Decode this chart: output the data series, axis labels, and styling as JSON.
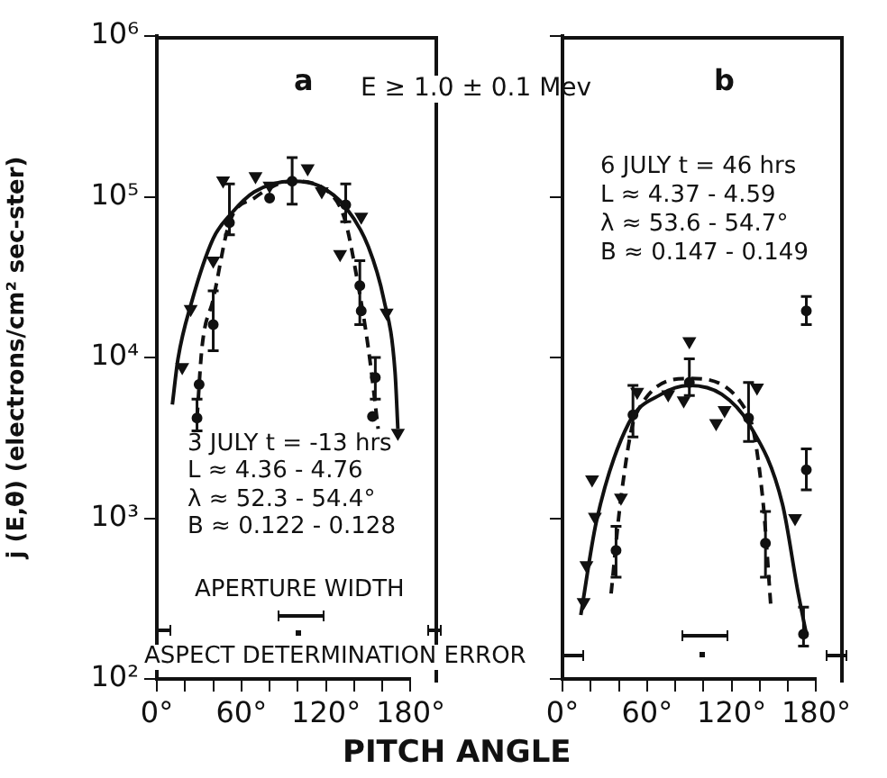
{
  "chart_data": [
    {
      "type": "scatter",
      "title": "a",
      "xlabel": "PITCH ANGLE",
      "ylabel": "j (E,θ) (electrons/cm² sec-ster)",
      "log": "y",
      "grid": false,
      "legend": false,
      "xlim": [
        0,
        180
      ],
      "xticks": [
        {
          "value": 0,
          "label": "0°"
        },
        {
          "value": 20,
          "label": null
        },
        {
          "value": 40,
          "label": null
        },
        {
          "value": 60,
          "label": "60°"
        },
        {
          "value": 80,
          "label": null
        },
        {
          "value": 100,
          "label": null
        },
        {
          "value": 120,
          "label": "120°"
        },
        {
          "value": 140,
          "label": null
        },
        {
          "value": 160,
          "label": null
        },
        {
          "value": 180,
          "label": "180°"
        }
      ],
      "ylim": [
        100,
        1000000
      ],
      "yticks": [
        {
          "value": 100,
          "label": "10²"
        },
        {
          "value": 1000,
          "label": "10³"
        },
        {
          "value": 10000,
          "label": "10⁴"
        },
        {
          "value": 100000,
          "label": "10⁵"
        },
        {
          "value": 1000000,
          "label": "10⁶"
        }
      ],
      "annotations": [
        "E ≥ 1.0 ± 0.1 Mev",
        "3 JULY   t = -13 hrs",
        "L ≈ 4.36 - 4.76",
        "λ ≈ 52.3 - 54.4°",
        "B ≈ 0.122 - 0.128",
        "APERTURE WIDTH",
        "ASPECT DETERMINATION ERROR"
      ],
      "series": [
        {
          "type": "scatter",
          "marker": "triangle",
          "color": "#111111",
          "x": [
            18,
            24,
            40,
            47,
            70,
            80,
            107,
            117,
            130,
            145,
            163,
            171
          ],
          "values": [
            8700,
            20000,
            40000,
            126000,
            134000,
            117000,
            150000,
            108000,
            44000,
            75000,
            19000,
            3400
          ]
        },
        {
          "type": "scatter",
          "marker": "circle",
          "color": "#111111",
          "x": [
            28.5,
            30,
            40,
            51.5,
            80,
            96,
            134,
            144,
            145,
            153,
            155
          ],
          "values": [
            4200,
            6800,
            16000,
            69000,
            98000,
            125000,
            89000,
            28000,
            19500,
            4300,
            7500
          ],
          "errors": [
            [
              3500,
              5500
            ],
            null,
            [
              11000,
              26000
            ],
            [
              58000,
              120000
            ],
            null,
            [
              90000,
              175000
            ],
            [
              70000,
              120000
            ],
            [
              16000,
              40000
            ],
            null,
            null,
            [
              5500,
              10000
            ]
          ]
        },
        {
          "type": "line",
          "marker": "none",
          "line_style": "solid",
          "color": "#111111",
          "x": [
            11,
            15,
            24.6,
            40,
            53,
            69,
            96,
            115,
            134,
            150,
            161,
            169,
            171
          ],
          "values": [
            5100,
            9800,
            22000,
            55000,
            79000,
            107000,
            125000,
            117000,
            86000,
            49000,
            23000,
            8100,
            3600
          ]
        },
        {
          "type": "line",
          "marker": "none",
          "line_style": "dashed",
          "color": "#111111",
          "x": [
            28.5,
            32,
            40,
            51.5,
            69,
            96,
            126,
            134,
            142,
            150,
            157
          ],
          "values": [
            4200,
            11500,
            23000,
            69000,
            98000,
            125000,
            98000,
            69000,
            31000,
            11500,
            3600
          ]
        }
      ]
    },
    {
      "type": "scatter",
      "title": "b",
      "log": "y",
      "grid": false,
      "legend": false,
      "tick_labels": "x",
      "xlim": [
        0,
        180
      ],
      "xticks": [
        {
          "value": 0,
          "label": "0°"
        },
        {
          "value": 20,
          "label": null
        },
        {
          "value": 40,
          "label": null
        },
        {
          "value": 60,
          "label": "60°"
        },
        {
          "value": 80,
          "label": null
        },
        {
          "value": 100,
          "label": null
        },
        {
          "value": 120,
          "label": "120°"
        },
        {
          "value": 140,
          "label": null
        },
        {
          "value": 160,
          "label": null
        },
        {
          "value": 180,
          "label": "180°"
        }
      ],
      "ylim": [
        100,
        1000000
      ],
      "yticks": [
        {
          "value": 100,
          "label": null
        },
        {
          "value": 1000,
          "label": null
        },
        {
          "value": 10000,
          "label": null
        },
        {
          "value": 100000,
          "label": null
        },
        {
          "value": 1000000,
          "label": null
        }
      ],
      "annotations": [
        "6 JULY   t = 46 hrs",
        "L ≈ 4.37 - 4.59",
        "λ ≈ 53.6 - 54.7°",
        "B ≈ 0.147 - 0.149"
      ],
      "series": [
        {
          "type": "scatter",
          "marker": "triangle",
          "color": "#111111",
          "x": [
            15,
            17,
            21,
            23,
            41.5,
            53,
            75,
            86,
            90,
            109,
            115,
            138,
            165
          ],
          "values": [
            300,
            510,
            1740,
            1020,
            1340,
            6100,
            5900,
            5400,
            12600,
            3900,
            4700,
            6500,
            1000
          ]
        },
        {
          "type": "scatter",
          "marker": "circle",
          "color": "#111111",
          "x": [
            38,
            50,
            90,
            132,
            144,
            171,
            173,
            173
          ],
          "values": [
            630,
            4400,
            7000,
            4200,
            700,
            190,
            2000,
            19500
          ],
          "errors": [
            [
              430,
              890
            ],
            [
              3200,
              6700
            ],
            [
              5800,
              9800
            ],
            [
              3000,
              7000
            ],
            [
              430,
              1100
            ],
            [
              160,
              280
            ],
            [
              1500,
              2700
            ],
            [
              16000,
              24000
            ]
          ]
        },
        {
          "type": "line",
          "marker": "none",
          "line_style": "solid",
          "color": "#111111",
          "x": [
            13,
            24,
            47,
            70,
            90,
            113,
            132,
            156,
            167,
            173
          ],
          "values": [
            250,
            950,
            3900,
            5900,
            6700,
            5900,
            3900,
            1230,
            350,
            190
          ]
        },
        {
          "type": "line",
          "marker": "none",
          "line_style": "dashed",
          "color": "#111111",
          "x": [
            34.5,
            41.5,
            52,
            90,
            132,
            142,
            148
          ],
          "values": [
            340,
            1340,
            4400,
            7400,
            4400,
            1340,
            270
          ]
        }
      ]
    }
  ]
}
